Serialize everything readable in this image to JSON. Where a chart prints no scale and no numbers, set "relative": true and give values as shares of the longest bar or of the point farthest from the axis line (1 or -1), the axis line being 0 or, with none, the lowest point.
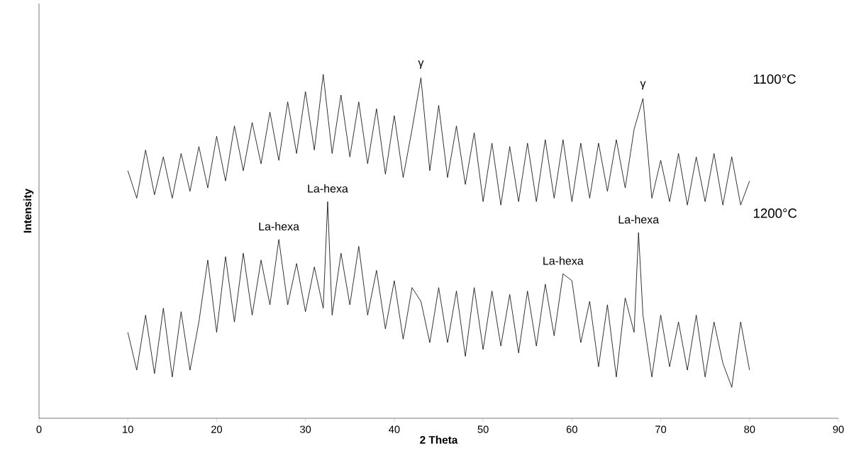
{
  "chart_data": {
    "type": "line",
    "xlabel": "2 Theta",
    "ylabel": "Intensity",
    "relative": true,
    "xlim": [
      0,
      90
    ],
    "xticks": [
      0,
      10,
      20,
      30,
      40,
      50,
      60,
      70,
      80,
      90
    ],
    "series": [
      {
        "name": "1100°C",
        "color": "#000000",
        "x": [
          10,
          11,
          12,
          13,
          14,
          15,
          16,
          17,
          18,
          19,
          20,
          21,
          22,
          23,
          24,
          25,
          26,
          27,
          28,
          29,
          30,
          31,
          32,
          33,
          34,
          35,
          36,
          37,
          38,
          39,
          40,
          41,
          42,
          43,
          44,
          45,
          46,
          47,
          48,
          49,
          50,
          51,
          52,
          53,
          54,
          55,
          56,
          57,
          58,
          59,
          60,
          61,
          62,
          63,
          64,
          65,
          66,
          67,
          68,
          69,
          70,
          71,
          72,
          73,
          74,
          75,
          76,
          77,
          78,
          79,
          80
        ],
        "values": [
          0.72,
          0.64,
          0.78,
          0.65,
          0.76,
          0.64,
          0.77,
          0.66,
          0.79,
          0.67,
          0.82,
          0.69,
          0.85,
          0.72,
          0.86,
          0.74,
          0.89,
          0.75,
          0.92,
          0.77,
          0.95,
          0.78,
          1.0,
          0.77,
          0.94,
          0.76,
          0.92,
          0.74,
          0.9,
          0.71,
          0.88,
          0.7,
          0.84,
          0.99,
          0.72,
          0.91,
          0.7,
          0.85,
          0.68,
          0.83,
          0.63,
          0.8,
          0.62,
          0.79,
          0.63,
          0.8,
          0.63,
          0.81,
          0.64,
          0.81,
          0.63,
          0.8,
          0.64,
          0.8,
          0.66,
          0.81,
          0.67,
          0.84,
          0.93,
          0.64,
          0.75,
          0.63,
          0.77,
          0.62,
          0.76,
          0.63,
          0.77,
          0.62,
          0.76,
          0.62,
          0.69
        ]
      },
      {
        "name": "1200°C",
        "color": "#000000",
        "x": [
          10,
          11,
          12,
          13,
          14,
          15,
          16,
          17,
          18,
          19,
          20,
          21,
          22,
          23,
          24,
          25,
          26,
          27,
          28,
          29,
          30,
          31,
          32,
          32.5,
          33,
          34,
          35,
          36,
          37,
          38,
          39,
          40,
          41,
          42,
          43,
          44,
          45,
          46,
          47,
          48,
          49,
          50,
          51,
          52,
          53,
          54,
          55,
          56,
          57,
          58,
          59,
          60,
          61,
          62,
          63,
          64,
          65,
          66,
          67,
          67.5,
          68,
          69,
          70,
          71,
          72,
          73,
          74,
          75,
          76,
          77,
          78,
          79,
          80
        ],
        "values": [
          0.25,
          0.14,
          0.3,
          0.13,
          0.32,
          0.12,
          0.31,
          0.14,
          0.28,
          0.46,
          0.25,
          0.47,
          0.28,
          0.48,
          0.3,
          0.46,
          0.33,
          0.52,
          0.33,
          0.45,
          0.31,
          0.44,
          0.32,
          0.63,
          0.3,
          0.48,
          0.33,
          0.5,
          0.3,
          0.43,
          0.26,
          0.4,
          0.23,
          0.38,
          0.34,
          0.22,
          0.38,
          0.22,
          0.37,
          0.18,
          0.38,
          0.2,
          0.37,
          0.21,
          0.36,
          0.19,
          0.37,
          0.21,
          0.39,
          0.24,
          0.42,
          0.4,
          0.22,
          0.34,
          0.15,
          0.33,
          0.12,
          0.35,
          0.25,
          0.54,
          0.3,
          0.12,
          0.3,
          0.15,
          0.28,
          0.14,
          0.3,
          0.12,
          0.28,
          0.16,
          0.09,
          0.28,
          0.14
        ]
      }
    ],
    "annotations": [
      {
        "text": "γ",
        "x": 43,
        "y": 0.99
      },
      {
        "text": "γ",
        "x": 68,
        "y": 0.93
      },
      {
        "text": "La-hexa",
        "x": 27,
        "y": 0.52
      },
      {
        "text": "La-hexa",
        "x": 32.5,
        "y": 0.63
      },
      {
        "text": "La-hexa",
        "x": 59,
        "y": 0.42
      },
      {
        "text": "La-hexa",
        "x": 67.5,
        "y": 0.54
      }
    ]
  }
}
